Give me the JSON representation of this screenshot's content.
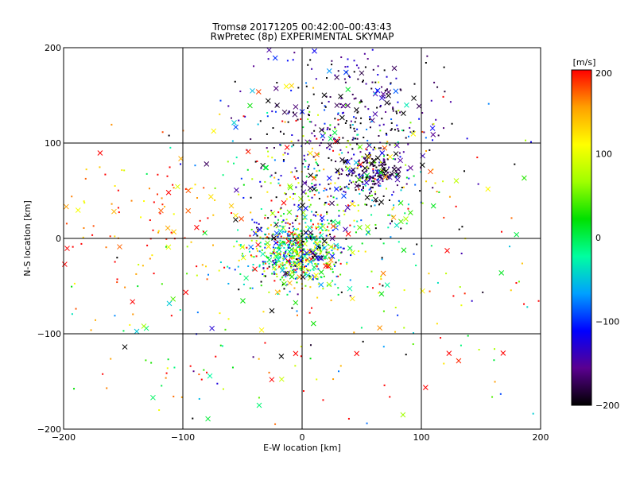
{
  "chart_data": {
    "type": "scatter",
    "title": "Tromsø 20171205 00:42:00–00:43:43",
    "subtitle": "RwPretec (8p) EXPERIMENTAL SKYMAP",
    "xlabel": "E-W location [km]",
    "ylabel": "N-S location [km]",
    "xlim": [
      -200,
      200
    ],
    "ylim": [
      -200,
      200
    ],
    "x_ticks": [
      -200,
      -100,
      0,
      100,
      200
    ],
    "y_ticks": [
      -200,
      -100,
      0,
      100,
      200
    ],
    "grid": true,
    "marker_types": [
      "dot",
      "cross"
    ],
    "colorbar": {
      "label": "[m/s]",
      "min": -200,
      "max": 200,
      "ticks": [
        -200,
        -100,
        0,
        100,
        200
      ],
      "colors": [
        "#000000",
        "#5a0090",
        "#0000ff",
        "#00a0ff",
        "#00ffa0",
        "#00e000",
        "#a0ff00",
        "#ffff00",
        "#ffa000",
        "#ff0000"
      ]
    },
    "clusters": [
      {
        "center": [
          -5,
          -15
        ],
        "spread": [
          22,
          18
        ],
        "velocity_mean": 0,
        "velocity_spread": 120
      },
      {
        "center": [
          60,
          70
        ],
        "spread": [
          12,
          12
        ],
        "velocity_mean": -180,
        "velocity_spread": 30
      },
      {
        "center": [
          40,
          130
        ],
        "spread": [
          40,
          45
        ],
        "velocity_mean": -170,
        "velocity_spread": 40
      },
      {
        "center": [
          25,
          60
        ],
        "spread": [
          45,
          40
        ],
        "velocity_mean": 0,
        "velocity_spread": 130
      },
      {
        "center": [
          -130,
          20
        ],
        "spread": [
          45,
          40
        ],
        "velocity_mean": 170,
        "velocity_spread": 40
      },
      {
        "center": [
          100,
          -40
        ],
        "spread": [
          70,
          80
        ],
        "velocity_mean": 60,
        "velocity_spread": 140
      },
      {
        "center": [
          -80,
          -100
        ],
        "spread": [
          70,
          60
        ],
        "velocity_mean": 50,
        "velocity_spread": 140
      }
    ]
  }
}
